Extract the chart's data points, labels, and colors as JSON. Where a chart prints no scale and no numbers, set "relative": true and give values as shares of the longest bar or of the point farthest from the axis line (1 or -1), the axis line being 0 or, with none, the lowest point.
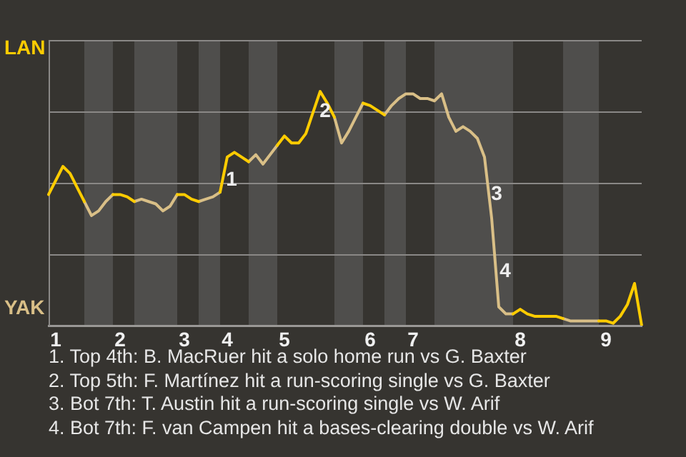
{
  "chart_data": {
    "type": "line",
    "relative": true,
    "categories": [
      null,
      "1",
      null,
      null,
      null,
      null,
      null,
      null,
      null,
      null,
      "2",
      null,
      null,
      null,
      null,
      null,
      null,
      null,
      null,
      "3",
      null,
      null,
      null,
      null,
      null,
      "4",
      null,
      null,
      null,
      null,
      null,
      null,
      null,
      "5",
      null,
      null,
      null,
      null,
      null,
      null,
      null,
      null,
      null,
      null,
      null,
      "6",
      null,
      null,
      null,
      null,
      null,
      "7",
      null,
      null,
      null,
      null,
      null,
      null,
      null,
      null,
      null,
      null,
      null,
      null,
      null,
      null,
      "8",
      null,
      null,
      null,
      null,
      null,
      null,
      null,
      null,
      null,
      null,
      null,
      "9",
      null,
      null,
      null,
      null,
      null
    ],
    "series": [
      {
        "color": "#ffcc00",
        "values": [
          0.56,
          0.62,
          0.68,
          0.65,
          0.59,
          0.53,
          null,
          null,
          null,
          0.56,
          0.56,
          0.55,
          0.53,
          null,
          null,
          null,
          null,
          null,
          0.56,
          0.56,
          0.54,
          0.53,
          null,
          null,
          0.57,
          0.72,
          0.74,
          0.72,
          0.7,
          null,
          null,
          null,
          0.77,
          0.81,
          0.78,
          0.78,
          0.82,
          0.91,
          1,
          0.95,
          0.89,
          null,
          null,
          null,
          0.95,
          0.94,
          0.92,
          0.9,
          null,
          null,
          null,
          null,
          null,
          null,
          null,
          null,
          null,
          null,
          null,
          null,
          null,
          null,
          null,
          null,
          null,
          0.05,
          0.07,
          0.05,
          0.04,
          0.04,
          0.04,
          0.04,
          0.03,
          null,
          null,
          null,
          null,
          0.02,
          0.02,
          0.01,
          0.04,
          0.09,
          0.18,
          0
        ]
      },
      {
        "color": "#d9bf87",
        "values": [
          null,
          null,
          null,
          null,
          null,
          0.53,
          0.47,
          0.49,
          0.53,
          0.56,
          null,
          null,
          0.53,
          0.54,
          0.53,
          0.52,
          0.49,
          0.51,
          0.56,
          null,
          null,
          0.53,
          0.54,
          0.55,
          0.57,
          null,
          null,
          null,
          0.7,
          0.73,
          0.69,
          0.73,
          0.77,
          null,
          null,
          null,
          null,
          null,
          null,
          null,
          0.89,
          0.78,
          0.83,
          0.89,
          0.95,
          null,
          null,
          0.9,
          0.94,
          0.97,
          0.99,
          0.99,
          0.97,
          0.97,
          0.96,
          0.99,
          0.89,
          0.83,
          0.85,
          0.83,
          0.8,
          0.72,
          0.46,
          0.08,
          0.05,
          0.05,
          null,
          null,
          null,
          null,
          null,
          null,
          0.03,
          0.02,
          0.02,
          0.02,
          0.02,
          0.02,
          null,
          null,
          null,
          null,
          null,
          null
        ]
      }
    ],
    "grid": "y",
    "legend": false,
    "marker": "none",
    "line_style": "solid",
    "annotations": [
      "LAN",
      "YAK",
      "1",
      "2",
      "3",
      "4",
      "1. Top 4th: B. MacRuer hit a solo home run vs G. Baxter",
      "2. Top 5th: F. Martínez hit a run-scoring single vs G. Baxter",
      "3. Bot 7th: T. Austin hit a run-scoring single vs W. Arif",
      "4. Bot 7th: F. van Campen hit a bases-clearing double vs W. Arif"
    ]
  }
}
